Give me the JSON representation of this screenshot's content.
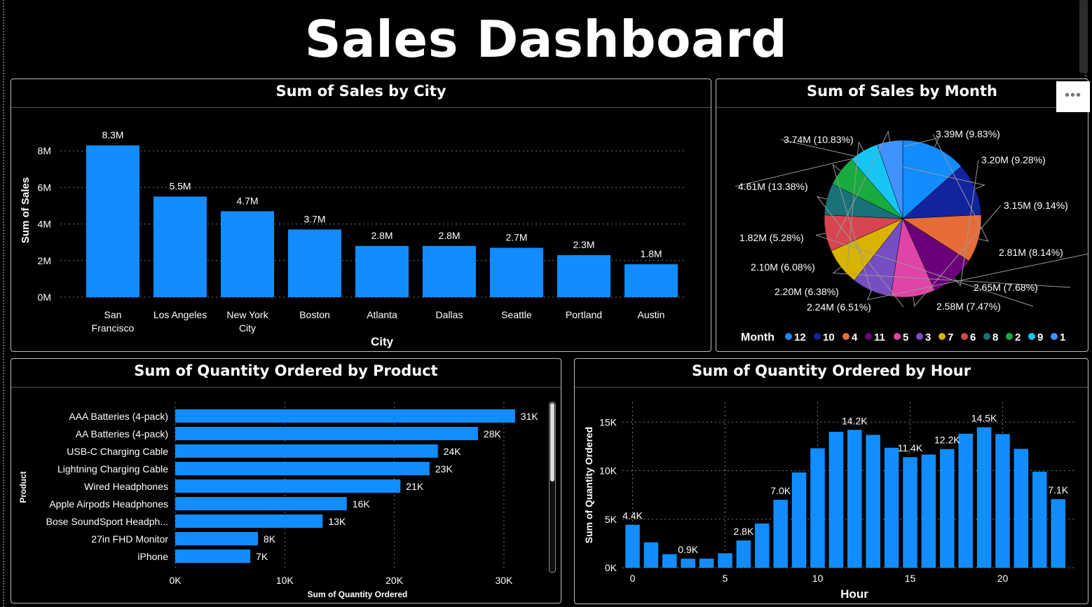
{
  "title": "Sales Dashboard",
  "more_icon": "more-options-icon",
  "colors": {
    "bar": "#118dff",
    "grid": "#777777"
  },
  "chart_data": [
    {
      "id": "city",
      "type": "bar",
      "title": "Sum of Sales by City",
      "xlabel": "City",
      "ylabel": "Sum of Sales",
      "categories": [
        "San Francisco",
        "Los Angeles",
        "New York City",
        "Boston",
        "Atlanta",
        "Dallas",
        "Seattle",
        "Portland",
        "Austin"
      ],
      "values": [
        8.3,
        5.5,
        4.7,
        3.7,
        2.8,
        2.8,
        2.7,
        2.3,
        1.8
      ],
      "data_labels": [
        "8.3M",
        "5.5M",
        "4.7M",
        "3.7M",
        "2.8M",
        "2.8M",
        "2.7M",
        "2.3M",
        "1.8M"
      ],
      "yticks": [
        0,
        2,
        4,
        6,
        8
      ],
      "ytick_labels": [
        "0M",
        "2M",
        "4M",
        "6M",
        "8M"
      ],
      "ylim": [
        0,
        8.3
      ]
    },
    {
      "id": "month",
      "type": "pie",
      "title": "Sum of Sales by Month",
      "legend_title": "Month",
      "legend_placement": "bottom",
      "slices": [
        {
          "month": "12",
          "label": "4.61M (13.38%)",
          "value": 4.61,
          "color": "#118dff"
        },
        {
          "month": "10",
          "label": "3.74M (10.83%)",
          "value": 3.74,
          "color": "#12239e"
        },
        {
          "month": "4",
          "label": "3.39M (9.83%)",
          "value": 3.39,
          "color": "#e66c37"
        },
        {
          "month": "11",
          "label": "3.20M (9.28%)",
          "value": 3.2,
          "color": "#6b007b"
        },
        {
          "month": "5",
          "label": "3.15M (9.14%)",
          "value": 3.15,
          "color": "#e044a7"
        },
        {
          "month": "3",
          "label": "2.81M (8.14%)",
          "value": 2.81,
          "color": "#744ec2"
        },
        {
          "month": "7",
          "label": "2.65M (7.68%)",
          "value": 2.65,
          "color": "#d9b300"
        },
        {
          "month": "6",
          "label": "2.58M (7.47%)",
          "value": 2.58,
          "color": "#d64550"
        },
        {
          "month": "8",
          "label": "2.24M (6.51%)",
          "value": 2.24,
          "color": "#197278"
        },
        {
          "month": "2",
          "label": "2.20M (6.38%)",
          "value": 2.2,
          "color": "#1aab40"
        },
        {
          "month": "9",
          "label": "2.10M (6.08%)",
          "value": 2.1,
          "color": "#15c6f4"
        },
        {
          "month": "1",
          "label": "1.82M (5.28%)",
          "value": 1.82,
          "color": "#4092ff"
        }
      ],
      "legend": [
        {
          "name": "12",
          "color": "#118dff"
        },
        {
          "name": "10",
          "color": "#12239e"
        },
        {
          "name": "4",
          "color": "#e66c37"
        },
        {
          "name": "11",
          "color": "#6b007b"
        },
        {
          "name": "5",
          "color": "#e044a7"
        },
        {
          "name": "3",
          "color": "#744ec2"
        },
        {
          "name": "7",
          "color": "#d9b300"
        },
        {
          "name": "6",
          "color": "#d64550"
        },
        {
          "name": "8",
          "color": "#197278"
        },
        {
          "name": "2",
          "color": "#1aab40"
        },
        {
          "name": "9",
          "color": "#15c6f4"
        },
        {
          "name": "1",
          "color": "#4092ff"
        }
      ]
    },
    {
      "id": "product",
      "type": "bar",
      "orientation": "horizontal",
      "title": "Sum of Quantity Ordered by Product",
      "xlabel": "Sum of Quantity Ordered",
      "ylabel": "Product",
      "categories": [
        "AAA Batteries (4-pack)",
        "AA Batteries (4-pack)",
        "USB-C Charging Cable",
        "Lightning Charging Cable",
        "Wired Headphones",
        "Apple Airpods Headphones",
        "Bose SoundSport Headph...",
        "27in FHD Monitor",
        "iPhone"
      ],
      "values": [
        31017,
        27635,
        23975,
        23217,
        20557,
        15661,
        13457,
        7550,
        6849
      ],
      "data_labels": [
        "31K",
        "28K",
        "24K",
        "23K",
        "21K",
        "16K",
        "13K",
        "8K",
        "7K"
      ],
      "xticks": [
        0,
        10000,
        20000,
        30000
      ],
      "xtick_labels": [
        "0K",
        "10K",
        "20K",
        "30K"
      ],
      "xlim": [
        0,
        32000
      ]
    },
    {
      "id": "hour",
      "type": "bar",
      "title": "Sum of Quantity Ordered by Hour",
      "xlabel": "Hour",
      "ylabel": "Sum of Quantity Ordered",
      "x": [
        0,
        1,
        2,
        3,
        4,
        5,
        6,
        7,
        8,
        9,
        10,
        11,
        12,
        13,
        14,
        15,
        16,
        17,
        18,
        19,
        20,
        21,
        22,
        23
      ],
      "values": [
        4428,
        2619,
        1398,
        928,
        937,
        1493,
        2810,
        4556,
        7002,
        9816,
        12308,
        14005,
        14202,
        13685,
        12362,
        11391,
        11662,
        12229,
        13802,
        14470,
        13768,
        12244,
        9899,
        7065
      ],
      "data_labels": [
        {
          "hour": 0,
          "text": "4.4K"
        },
        {
          "hour": 3,
          "text": "0.9K"
        },
        {
          "hour": 6,
          "text": "2.8K"
        },
        {
          "hour": 8,
          "text": "7.0K"
        },
        {
          "hour": 12,
          "text": "14.2K"
        },
        {
          "hour": 15,
          "text": "11.4K"
        },
        {
          "hour": 17,
          "text": "12.2K"
        },
        {
          "hour": 19,
          "text": "14.5K"
        },
        {
          "hour": 23,
          "text": "7.1K"
        }
      ],
      "yticks": [
        0,
        5000,
        10000,
        15000
      ],
      "ytick_labels": [
        "0K",
        "5K",
        "10K",
        "15K"
      ],
      "xticks": [
        0,
        5,
        10,
        15,
        20
      ],
      "xtick_labels": [
        "0",
        "5",
        "10",
        "15",
        "20"
      ],
      "ylim": [
        0,
        16000
      ]
    }
  ]
}
